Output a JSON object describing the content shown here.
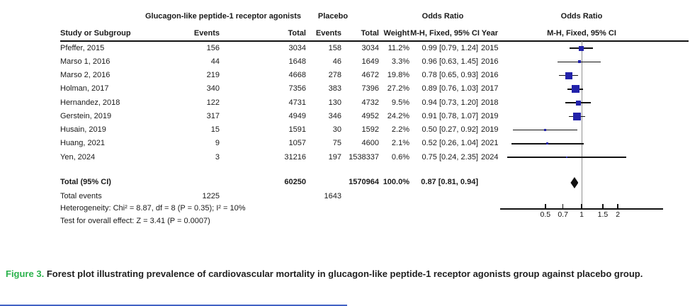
{
  "figure": {
    "caption_label": "Figure 3.",
    "caption_text": "Forest plot illustrating prevalence of cardiovascular mortality in glucagon-like peptide-1 receptor agonists group against placebo group."
  },
  "colors": {
    "square_blue": "#2222aa",
    "diamond_black": "#111111",
    "ci_line": "#111111",
    "axis_black": "#111111",
    "null_line_gray": "#909090",
    "caption_green": "#2bb24c",
    "bottom_rule_blue": "#4262c5"
  },
  "table": {
    "group_headers": {
      "treatment": "Glucagon-like peptide-1 receptor agonists",
      "control": "Placebo",
      "odds_ratio": "Odds Ratio",
      "plot_title": "Odds Ratio"
    },
    "col_headers": {
      "study": "Study or Subgroup",
      "events_treatment": "Events",
      "total_treatment": "Total",
      "events_control": "Events",
      "total_control": "Total",
      "weight": "Weight",
      "or_ci_year": "M-H, Fixed, 95% CI Year",
      "plot_subtitle": "M-H, Fixed, 95% CI"
    }
  },
  "chart_data": {
    "type": "forest",
    "x_scale": "log",
    "axis_ticks": [
      "0.5",
      "0.7",
      "1",
      "1.5",
      "2"
    ],
    "axis_range": [
      0.2,
      5
    ],
    "effect_measure": "Odds Ratio (M-H, Fixed, 95% CI)",
    "studies": [
      {
        "name": "Pfeffer, 2015",
        "events_t": "156",
        "total_t": "3034",
        "events_c": "158",
        "total_c": "3034",
        "weight": "11.2%",
        "or": 0.99,
        "ci_low": 0.79,
        "ci_high": 1.24,
        "or_label": "0.99 [0.79, 1.24]",
        "year": "2015"
      },
      {
        "name": "Marso 1, 2016",
        "events_t": "44",
        "total_t": "1648",
        "events_c": "46",
        "total_c": "1649",
        "weight": "3.3%",
        "or": 0.96,
        "ci_low": 0.63,
        "ci_high": 1.45,
        "or_label": "0.96 [0.63, 1.45]",
        "year": "2016"
      },
      {
        "name": "Marso 2, 2016",
        "events_t": "219",
        "total_t": "4668",
        "events_c": "278",
        "total_c": "4672",
        "weight": "19.8%",
        "or": 0.78,
        "ci_low": 0.65,
        "ci_high": 0.93,
        "or_label": "0.78 [0.65, 0.93]",
        "year": "2016"
      },
      {
        "name": "Holman, 2017",
        "events_t": "340",
        "total_t": "7356",
        "events_c": "383",
        "total_c": "7396",
        "weight": "27.2%",
        "or": 0.89,
        "ci_low": 0.76,
        "ci_high": 1.03,
        "or_label": "0.89 [0.76, 1.03]",
        "year": "2017"
      },
      {
        "name": "Hernandez, 2018",
        "events_t": "122",
        "total_t": "4731",
        "events_c": "130",
        "total_c": "4732",
        "weight": "9.5%",
        "or": 0.94,
        "ci_low": 0.73,
        "ci_high": 1.2,
        "or_label": "0.94 [0.73, 1.20]",
        "year": "2018"
      },
      {
        "name": "Gerstein, 2019",
        "events_t": "317",
        "total_t": "4949",
        "events_c": "346",
        "total_c": "4952",
        "weight": "24.2%",
        "or": 0.91,
        "ci_low": 0.78,
        "ci_high": 1.07,
        "or_label": "0.91 [0.78, 1.07]",
        "year": "2019"
      },
      {
        "name": "Husain, 2019",
        "events_t": "15",
        "total_t": "1591",
        "events_c": "30",
        "total_c": "1592",
        "weight": "2.2%",
        "or": 0.5,
        "ci_low": 0.27,
        "ci_high": 0.92,
        "or_label": "0.50 [0.27, 0.92]",
        "year": "2019"
      },
      {
        "name": "Huang, 2021",
        "events_t": "9",
        "total_t": "1057",
        "events_c": "75",
        "total_c": "4600",
        "weight": "2.1%",
        "or": 0.52,
        "ci_low": 0.26,
        "ci_high": 1.04,
        "or_label": "0.52 [0.26, 1.04]",
        "year": "2021"
      },
      {
        "name": "Yen, 2024",
        "events_t": "3",
        "total_t": "31216",
        "events_c": "197",
        "total_c": "1538337",
        "weight": "0.6%",
        "or": 0.75,
        "ci_low": 0.24,
        "ci_high": 2.35,
        "or_label": "0.75 [0.24, 2.35]",
        "year": "2024"
      }
    ],
    "total_row": {
      "label": "Total (95% CI)",
      "total_t": "60250",
      "total_c": "1570964",
      "weight": "100.0%",
      "or": 0.87,
      "ci_low": 0.81,
      "ci_high": 0.94,
      "or_label": "0.87 [0.81, 0.94]"
    },
    "total_events": {
      "label": "Total events",
      "events_t": "1225",
      "events_c": "1643"
    },
    "heterogeneity": "Heterogeneity: Chi² = 8.87, df = 8 (P = 0.35); I² = 10%",
    "overall_effect": "Test for overall effect: Z = 3.41 (P = 0.0007)"
  }
}
